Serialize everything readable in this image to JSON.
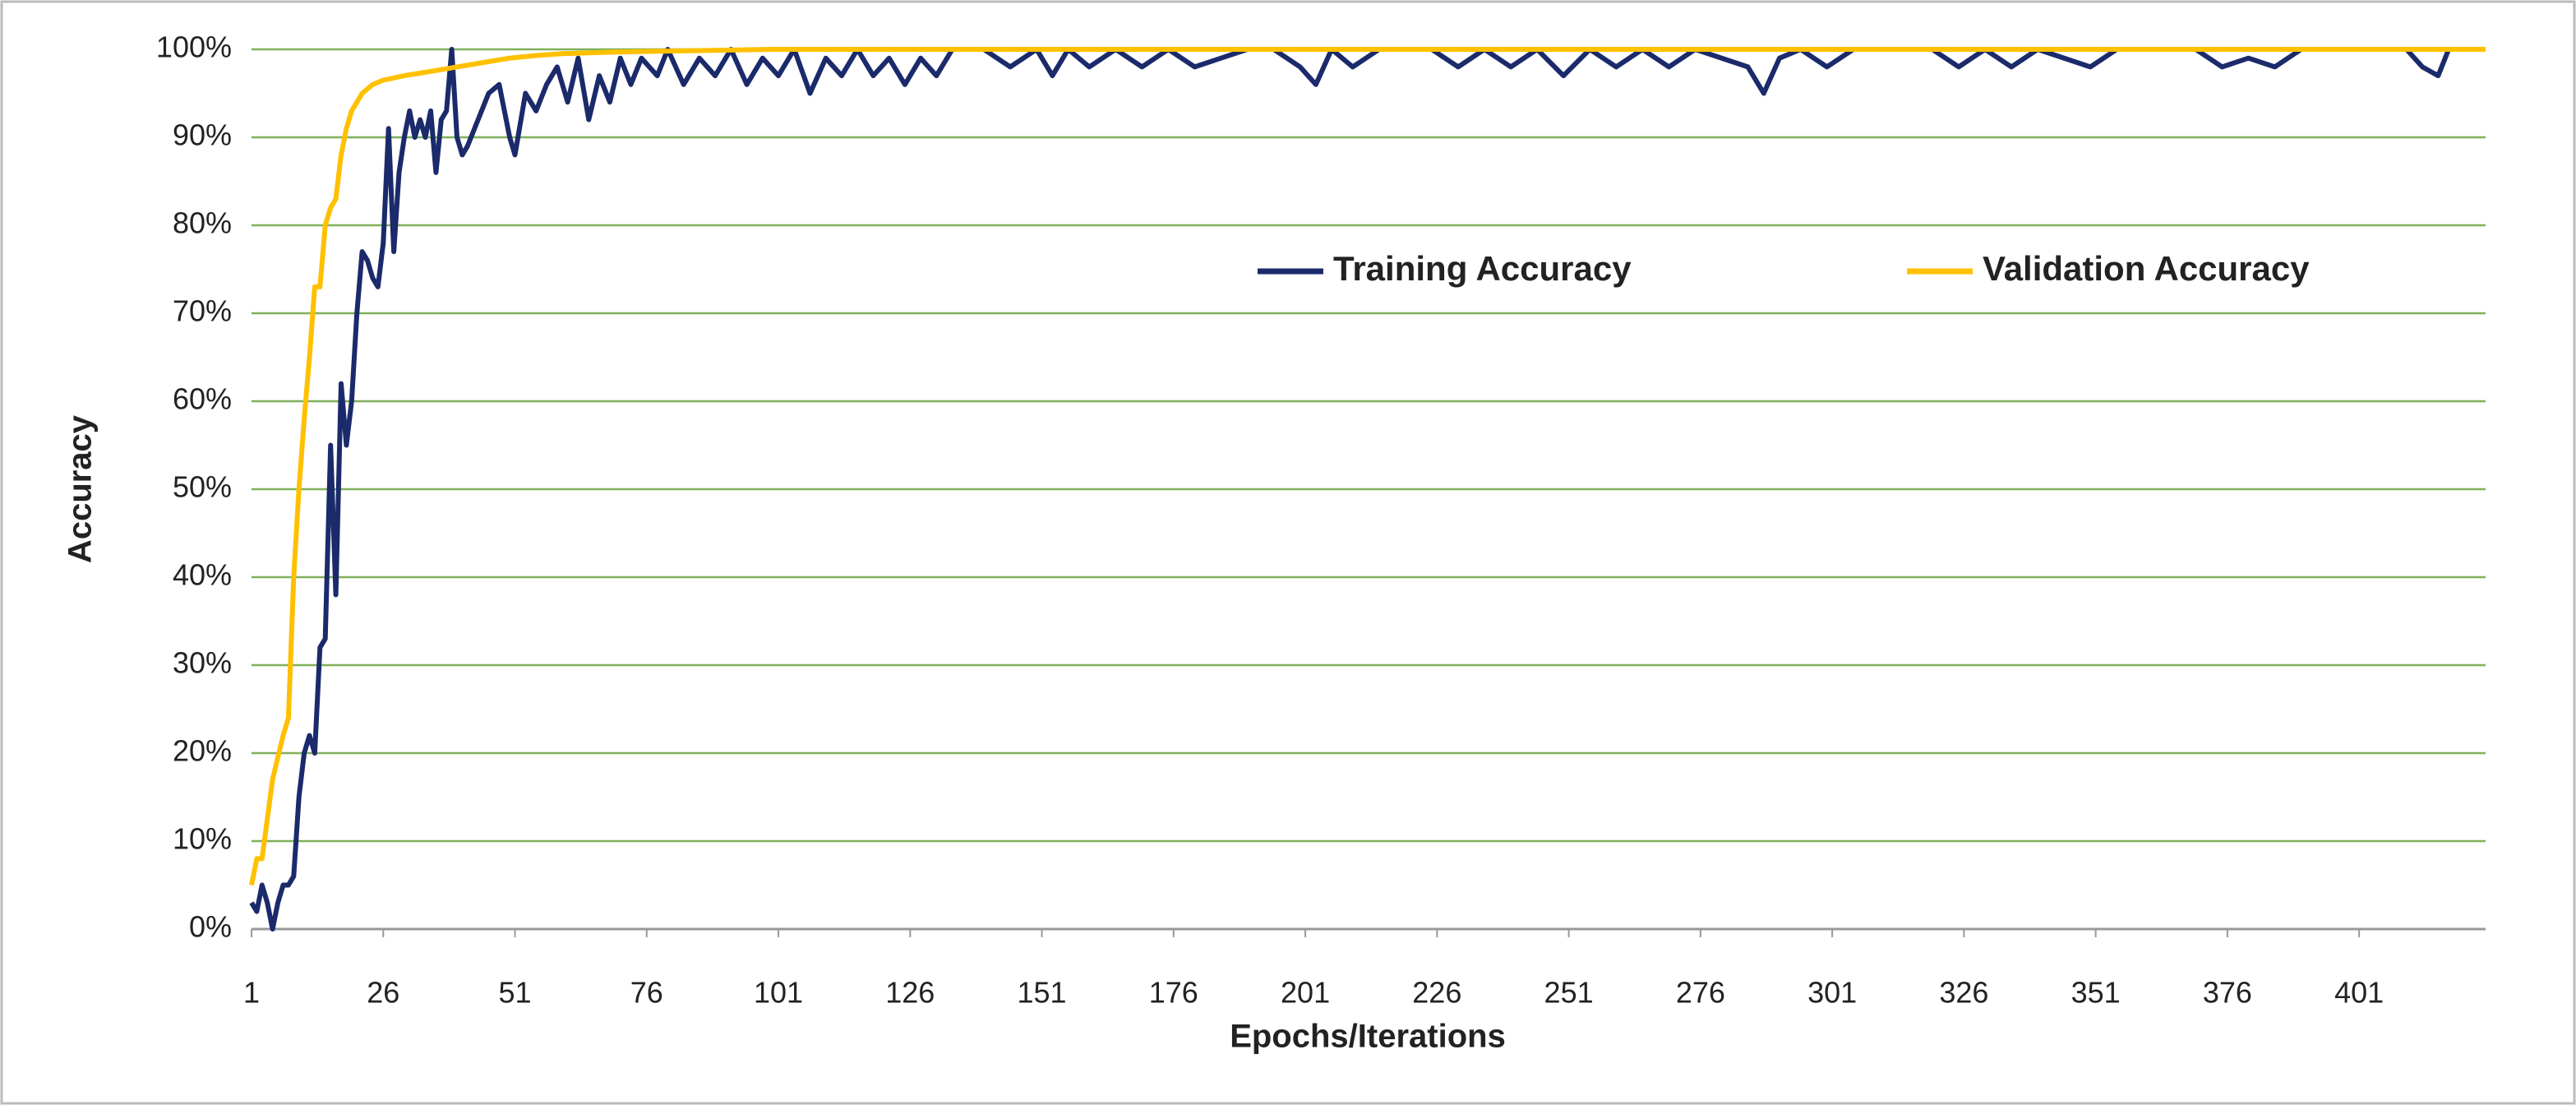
{
  "chart_data": {
    "type": "line",
    "xlabel": "Epochs/Iterations",
    "ylabel": "Accuracy",
    "xlim": [
      1,
      425
    ],
    "xticks": [
      1,
      26,
      51,
      76,
      101,
      126,
      151,
      176,
      201,
      226,
      251,
      276,
      301,
      326,
      351,
      376,
      401
    ],
    "ylim": [
      0,
      100
    ],
    "yticks": [
      {
        "value": 0,
        "label": "0%"
      },
      {
        "value": 10,
        "label": "10%"
      },
      {
        "value": 20,
        "label": "20%"
      },
      {
        "value": 30,
        "label": "30%"
      },
      {
        "value": 40,
        "label": "40%"
      },
      {
        "value": 50,
        "label": "50%"
      },
      {
        "value": 60,
        "label": "60%"
      },
      {
        "value": 70,
        "label": "70%"
      },
      {
        "value": 80,
        "label": "80%"
      },
      {
        "value": 90,
        "label": "90%"
      },
      {
        "value": 100,
        "label": "100%"
      }
    ],
    "grid": true,
    "grid_color": "#7fb05a",
    "legend": "upper right",
    "series": [
      {
        "name": "Training Accuracy",
        "color": "#1b2a6b",
        "x": [
          1,
          2,
          3,
          4,
          5,
          6,
          7,
          8,
          9,
          10,
          11,
          12,
          13,
          14,
          15,
          16,
          17,
          18,
          19,
          20,
          21,
          22,
          23,
          24,
          25,
          26,
          27,
          28,
          29,
          30,
          31,
          32,
          33,
          34,
          35,
          36,
          37,
          38,
          39,
          40,
          41,
          42,
          44,
          46,
          48,
          50,
          51,
          53,
          55,
          57,
          59,
          61,
          63,
          65,
          67,
          69,
          71,
          73,
          75,
          78,
          80,
          83,
          86,
          89,
          92,
          95,
          98,
          101,
          104,
          107,
          110,
          113,
          116,
          119,
          122,
          125,
          128,
          131,
          134,
          140,
          145,
          150,
          153,
          156,
          160,
          165,
          170,
          175,
          180,
          185,
          190,
          195,
          200,
          203,
          206,
          210,
          215,
          220,
          225,
          230,
          235,
          240,
          245,
          250,
          255,
          260,
          265,
          270,
          275,
          285,
          288,
          291,
          295,
          300,
          305,
          320,
          325,
          330,
          335,
          340,
          350,
          355,
          370,
          375,
          380,
          385,
          390,
          395,
          410,
          413,
          416,
          418,
          425
        ],
        "values": [
          3,
          2,
          5,
          3,
          0,
          3,
          5,
          5,
          6,
          15,
          20,
          22,
          20,
          32,
          33,
          55,
          38,
          62,
          55,
          60,
          70,
          77,
          76,
          74,
          73,
          78,
          91,
          77,
          86,
          90,
          93,
          90,
          92,
          90,
          93,
          86,
          92,
          93,
          100,
          90,
          88,
          89,
          92,
          95,
          96,
          90,
          88,
          95,
          93,
          96,
          98,
          94,
          99,
          92,
          97,
          94,
          99,
          96,
          99,
          97,
          100,
          96,
          99,
          97,
          100,
          96,
          99,
          97,
          100,
          95,
          99,
          97,
          100,
          97,
          99,
          96,
          99,
          97,
          100,
          100,
          98,
          100,
          97,
          100,
          98,
          100,
          98,
          100,
          98,
          99,
          100,
          100,
          98,
          96,
          100,
          98,
          100,
          100,
          100,
          98,
          100,
          98,
          100,
          97,
          100,
          98,
          100,
          98,
          100,
          98,
          95,
          99,
          100,
          98,
          100,
          100,
          98,
          100,
          98,
          100,
          98,
          100,
          100,
          98,
          99,
          98,
          100,
          100,
          100,
          98,
          97,
          100,
          100
        ]
      },
      {
        "name": "Validation Accuracy",
        "color": "#ffc000",
        "x": [
          1,
          2,
          3,
          5,
          7,
          8,
          9,
          10,
          11,
          12,
          13,
          14,
          15,
          16,
          17,
          18,
          19,
          20,
          22,
          24,
          26,
          30,
          35,
          40,
          45,
          50,
          55,
          60,
          70,
          80,
          100,
          425
        ],
        "values": [
          5,
          8,
          8,
          17,
          22,
          24,
          40,
          50,
          58,
          65,
          73,
          73,
          80,
          82,
          83,
          88,
          91,
          93,
          95,
          96,
          96.5,
          97,
          97.5,
          98,
          98.5,
          99,
          99.3,
          99.5,
          99.7,
          99.8,
          100,
          100
        ]
      }
    ]
  }
}
